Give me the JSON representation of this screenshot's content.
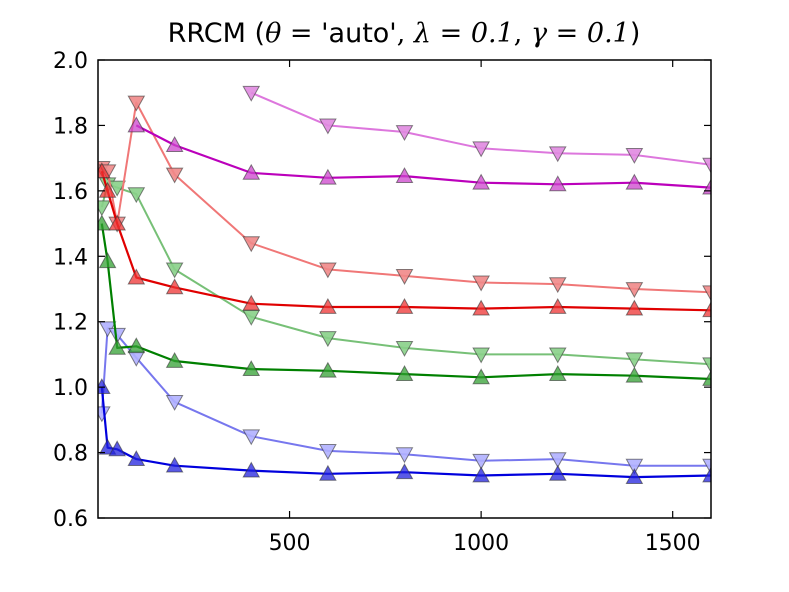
{
  "chart_data": {
    "type": "line",
    "title": {
      "prefix": "RRCM (",
      "theta_sym": "θ",
      "eq1": " = ",
      "theta_val": "'auto'",
      "sep1": ", ",
      "lambda_sym": "λ",
      "eq2": " = ",
      "lambda_val": "0.1",
      "sep2": ", ",
      "gamma_sym": "γ",
      "eq3": " = ",
      "gamma_val": "0.1",
      "suffix": ")"
    },
    "xlabel": "",
    "ylabel": "",
    "xlim": [
      0,
      1600
    ],
    "ylim": [
      0.6,
      2.0
    ],
    "xticks": [
      500,
      1000,
      1500
    ],
    "xtick_labels": [
      "500",
      "1000",
      "1500"
    ],
    "yticks": [
      0.6,
      0.8,
      1.0,
      1.2,
      1.4,
      1.6,
      1.8,
      2.0
    ],
    "ytick_labels": [
      "0.6",
      "0.8",
      "1.0",
      "1.2",
      "1.4",
      "1.6",
      "1.8",
      "2.0"
    ],
    "grid": false,
    "legend": false,
    "series": [
      {
        "color": "#b0b0ff",
        "line": "#7777ee",
        "marker": "triangle-down",
        "alpha": 0.55,
        "x": [
          10,
          25,
          50,
          100,
          200,
          400,
          600,
          800,
          1000,
          1200,
          1400,
          1600
        ],
        "y": [
          0.92,
          1.18,
          1.16,
          1.09,
          0.955,
          0.85,
          0.805,
          0.795,
          0.775,
          0.78,
          0.76,
          0.76
        ]
      },
      {
        "color": "#2222dd",
        "line": "#0000dd",
        "marker": "triangle-up",
        "alpha": 1.0,
        "x": [
          10,
          25,
          50,
          100,
          200,
          400,
          600,
          800,
          1000,
          1200,
          1400,
          1600
        ],
        "y": [
          1.0,
          0.815,
          0.81,
          0.78,
          0.76,
          0.745,
          0.735,
          0.74,
          0.73,
          0.735,
          0.725,
          0.73
        ]
      },
      {
        "color": "#88d088",
        "line": "#77c077",
        "marker": "triangle-down",
        "alpha": 0.55,
        "x": [
          10,
          25,
          50,
          100,
          200,
          400,
          600,
          800,
          1000,
          1200,
          1400,
          1600
        ],
        "y": [
          1.55,
          1.62,
          1.61,
          1.59,
          1.36,
          1.215,
          1.15,
          1.12,
          1.1,
          1.1,
          1.085,
          1.07
        ]
      },
      {
        "color": "#33a033",
        "line": "#008000",
        "marker": "triangle-up",
        "alpha": 1.0,
        "x": [
          10,
          25,
          50,
          100,
          200,
          400,
          600,
          800,
          1000,
          1200,
          1400,
          1600
        ],
        "y": [
          1.5,
          1.385,
          1.12,
          1.125,
          1.08,
          1.055,
          1.05,
          1.04,
          1.03,
          1.04,
          1.035,
          1.025
        ]
      },
      {
        "color": "#f08888",
        "line": "#f07777",
        "marker": "triangle-down",
        "alpha": 0.55,
        "x": [
          10,
          25,
          50,
          100,
          200,
          400,
          600,
          800,
          1000,
          1200,
          1400,
          1600
        ],
        "y": [
          1.67,
          1.66,
          1.5,
          1.87,
          1.65,
          1.44,
          1.36,
          1.34,
          1.32,
          1.315,
          1.3,
          1.29
        ]
      },
      {
        "color": "#ee3333",
        "line": "#e00000",
        "marker": "triangle-up",
        "alpha": 1.0,
        "x": [
          10,
          25,
          50,
          100,
          200,
          400,
          600,
          800,
          1000,
          1200,
          1400,
          1600
        ],
        "y": [
          1.66,
          1.6,
          1.5,
          1.335,
          1.305,
          1.255,
          1.245,
          1.245,
          1.24,
          1.245,
          1.24,
          1.235
        ]
      },
      {
        "color": "#e08ae0",
        "line": "#dd77dd",
        "marker": "triangle-down",
        "alpha": 0.55,
        "x": [
          400,
          600,
          800,
          1000,
          1200,
          1400,
          1600
        ],
        "y": [
          1.9,
          1.8,
          1.78,
          1.73,
          1.715,
          1.71,
          1.68
        ]
      },
      {
        "color": "#cc44cc",
        "line": "#bb00bb",
        "marker": "triangle-up",
        "alpha": 1.0,
        "x": [
          100,
          200,
          400,
          600,
          800,
          1000,
          1200,
          1400,
          1600
        ],
        "y": [
          1.8,
          1.74,
          1.655,
          1.64,
          1.645,
          1.625,
          1.62,
          1.625,
          1.61
        ]
      }
    ]
  }
}
